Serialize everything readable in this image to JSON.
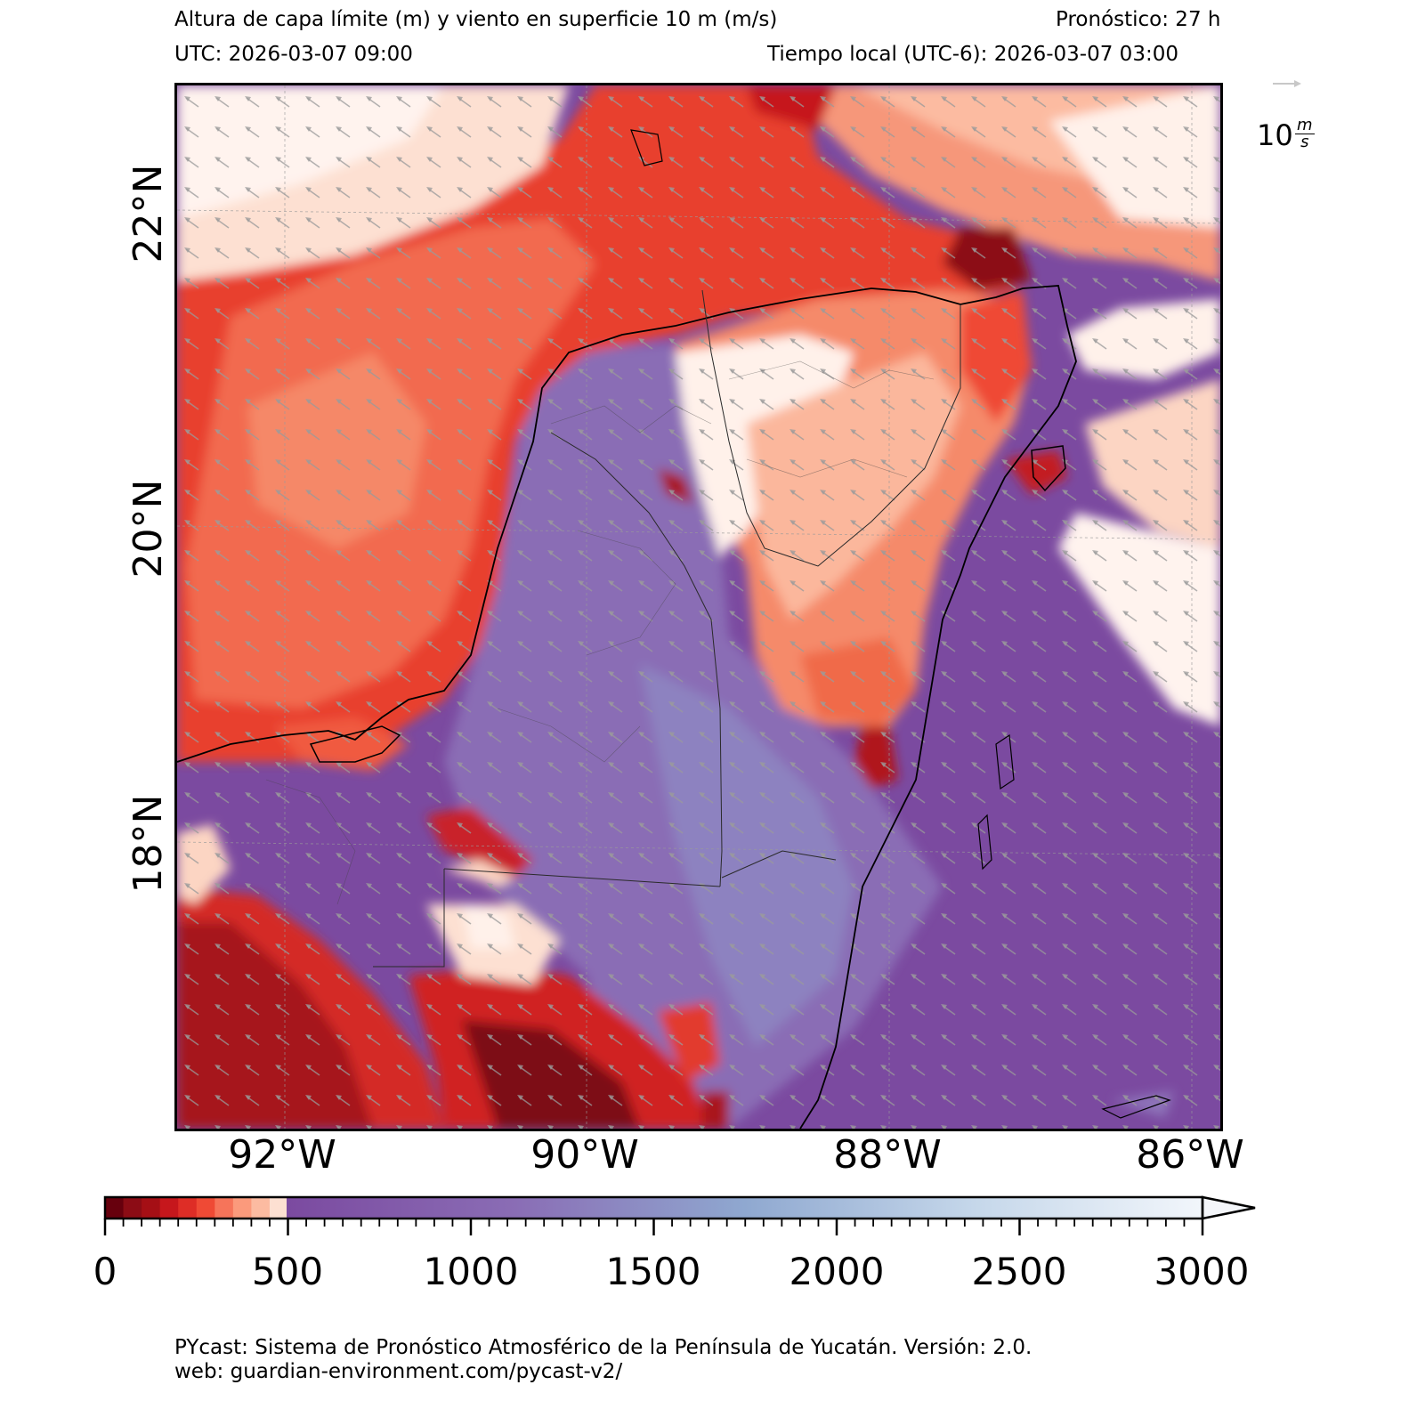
{
  "header": {
    "title": "Altura de capa límite (m) y viento en superficie 10 m (m/s)",
    "forecast": "Pronóstico: 27 h",
    "utc": "UTC:  2026-03-07 09:00",
    "local_time": "Tiempo local (UTC-6): 2026-03-07 03:00"
  },
  "map": {
    "lat_labels": [
      "22°N",
      "20°N",
      "18°N"
    ],
    "lon_labels": [
      "92°W",
      "90°W",
      "88°W",
      "86°W"
    ],
    "wind_reference": {
      "value": "10",
      "unit_numerator": "m",
      "unit_denominator": "s"
    }
  },
  "colorbar": {
    "range": [
      0,
      3000
    ],
    "tick_labels": [
      "0",
      "500",
      "1000",
      "1500",
      "2000",
      "2500",
      "3000"
    ],
    "extend": "max",
    "colors": {
      "reds_dark": "#67000d",
      "reds_mid": "#ef3b2c",
      "reds_light": "#fcbba1",
      "reds_white": "#fff5f0",
      "purple": "#7b4aa0",
      "blue_mid": "#8fa8d0",
      "blue_light": "#dde8f3"
    }
  },
  "footer": {
    "line1": "PYcast: Sistema de Pronóstico Atmosférico de la Península de Yucatán. Versión: 2.0.",
    "line2": "web: guardian-environment.com/pycast-v2/"
  }
}
